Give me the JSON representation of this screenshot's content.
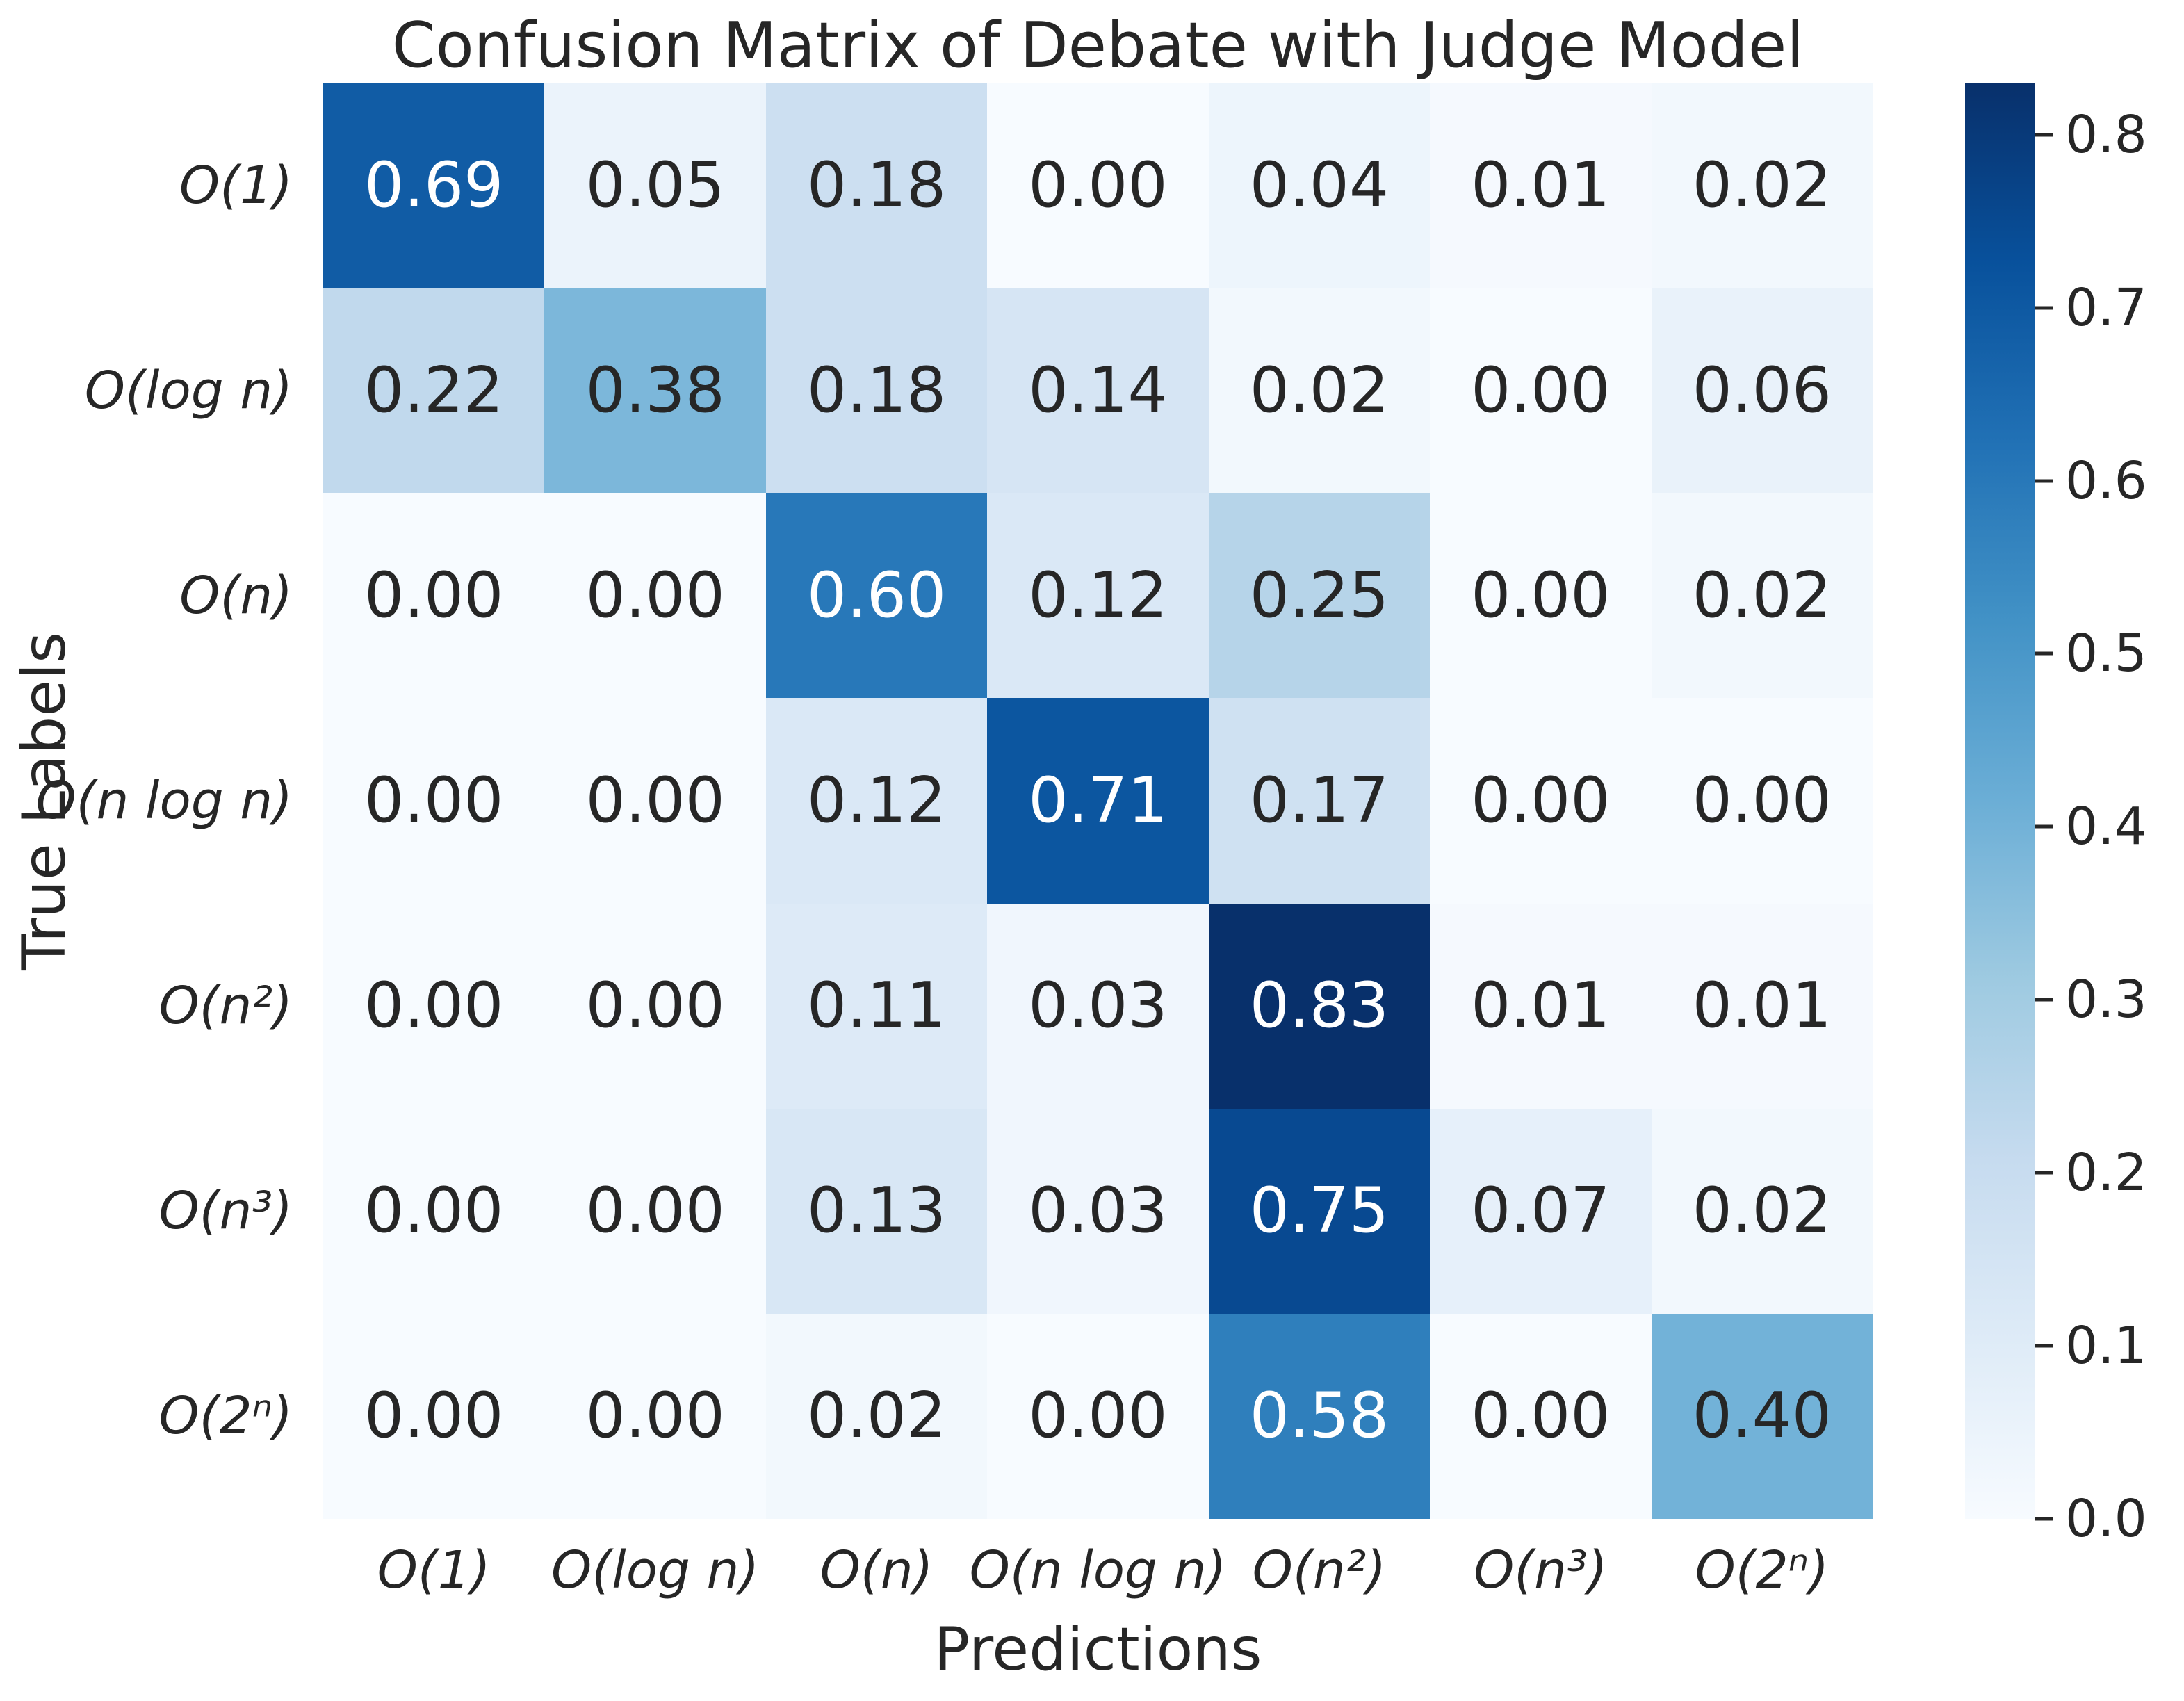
{
  "figure": {
    "background": "#ffffff",
    "text_color": "#262626"
  },
  "chart_data": {
    "type": "heatmap",
    "title": "Confusion Matrix of Debate with Judge Model",
    "xlabel": "Predictions",
    "ylabel": "True Labels",
    "x_tick_labels": [
      "O(1)",
      "O(log n)",
      "O(n)",
      "O(n log n)",
      "O(n²)",
      "O(n³)",
      "O(2ⁿ)"
    ],
    "y_tick_labels": [
      "O(1)",
      "O(log n)",
      "O(n)",
      "O(n log n)",
      "O(n²)",
      "O(n³)",
      "O(2ⁿ)"
    ],
    "rows": [
      [
        0.69,
        0.05,
        0.18,
        0.0,
        0.04,
        0.01,
        0.02
      ],
      [
        0.22,
        0.38,
        0.18,
        0.14,
        0.02,
        0.0,
        0.06
      ],
      [
        0.0,
        0.0,
        0.6,
        0.12,
        0.25,
        0.0,
        0.02
      ],
      [
        0.0,
        0.0,
        0.12,
        0.71,
        0.17,
        0.0,
        0.0
      ],
      [
        0.0,
        0.0,
        0.11,
        0.03,
        0.83,
        0.01,
        0.01
      ],
      [
        0.0,
        0.0,
        0.13,
        0.03,
        0.75,
        0.07,
        0.02
      ],
      [
        0.0,
        0.0,
        0.02,
        0.0,
        0.58,
        0.0,
        0.4
      ]
    ],
    "vmin": 0.0,
    "vmax": 0.83,
    "value_decimals": 2,
    "colormap": "Blues",
    "colormap_stops": [
      "#f7fbff",
      "#deebf7",
      "#c6dbef",
      "#9ecae1",
      "#6baed6",
      "#4292c6",
      "#2171b5",
      "#08519c",
      "#08306b"
    ],
    "colorbar_ticks": [
      0.0,
      0.1,
      0.2,
      0.3,
      0.4,
      0.5,
      0.6,
      0.7,
      0.8
    ],
    "colorbar_tick_decimals": 1,
    "colorbar_position": "right",
    "annotation_color_light": "#ffffff",
    "annotation_color_dark": "#262626",
    "white_text_min_value": 0.5,
    "grid": false,
    "legend": false
  }
}
